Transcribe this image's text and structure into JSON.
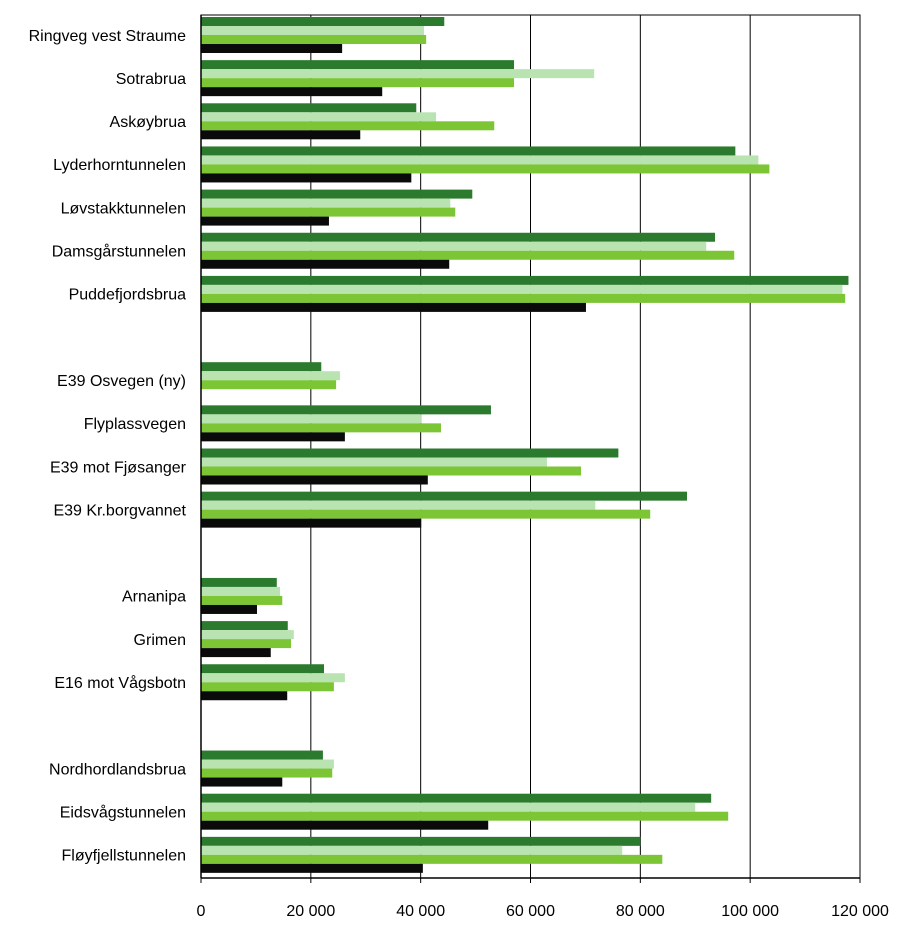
{
  "chart_data": {
    "type": "hbar",
    "categories": [
      "Ringveg vest Straume",
      "Sotrabrua",
      "Askøybrua",
      "Lyderhorntunnelen",
      "Løvstakktunnelen",
      "Damsgårstunnelen",
      "Puddefjordsbrua",
      null,
      "E39 Osvegen (ny)",
      "Flyplassvegen",
      "E39  mot Fjøsanger",
      "E39 Kr.borgvannet",
      null,
      "Arnanipa",
      "Grimen",
      "E16 mot Vågsbotn",
      null,
      "Nordhordlandsbrua",
      "Eidsvågstunnelen",
      "Fløyfjellstunnelen"
    ],
    "series": [
      {
        "color": "#2b7a2e",
        "values": [
          44300,
          57000,
          39200,
          97300,
          49400,
          93600,
          117900,
          null,
          21900,
          52800,
          76000,
          88500,
          null,
          13800,
          15800,
          22400,
          null,
          22200,
          92900,
          80000
        ]
      },
      {
        "color": "#b9e3b1",
        "values": [
          40600,
          71600,
          42800,
          101500,
          45400,
          92000,
          116800,
          null,
          25300,
          40100,
          63000,
          71800,
          null,
          14400,
          16900,
          26200,
          null,
          24200,
          90000,
          76700
        ]
      },
      {
        "color": "#7cc636",
        "values": [
          41000,
          57000,
          53400,
          103500,
          46300,
          97100,
          117300,
          null,
          24600,
          43700,
          69200,
          81800,
          null,
          14800,
          16400,
          24200,
          null,
          23900,
          96000,
          84000
        ]
      },
      {
        "color": "#0a0a0a",
        "values": [
          25700,
          33000,
          29000,
          38300,
          23300,
          45200,
          70100,
          null,
          null,
          26200,
          41300,
          40100,
          null,
          10200,
          12700,
          15700,
          null,
          14800,
          52300,
          40400
        ]
      }
    ],
    "xlim": [
      0,
      120000
    ],
    "xticks": [
      0,
      {
        "value": 20000,
        "label": "20 000"
      },
      {
        "value": 40000,
        "label": "40 000"
      },
      {
        "value": 60000,
        "label": "60 000"
      },
      {
        "value": 80000,
        "label": "80 000"
      },
      {
        "value": 100000,
        "label": "100 000"
      },
      {
        "value": 120000,
        "label": "120 000"
      }
    ],
    "grid": true
  }
}
